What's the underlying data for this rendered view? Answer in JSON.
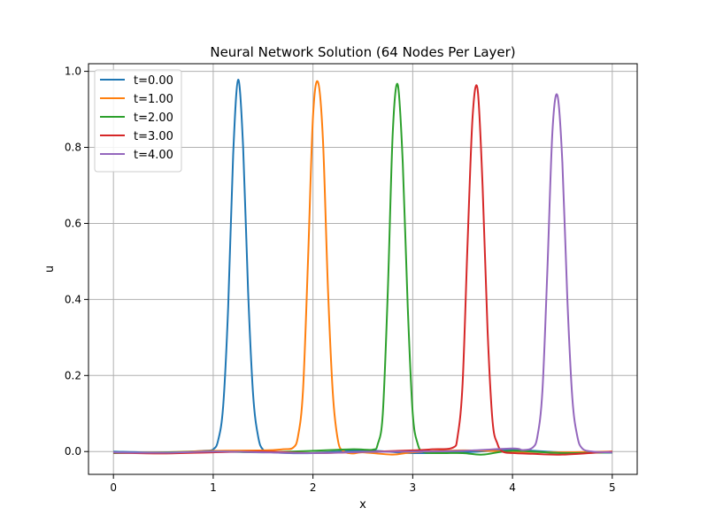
{
  "chart_data": {
    "type": "line",
    "title": "Neural Network Solution (64 Nodes Per Layer)",
    "xlabel": "x",
    "ylabel": "u",
    "xlim": [
      -0.25,
      5.25
    ],
    "ylim": [
      -0.06,
      1.02
    ],
    "xticks": [
      0,
      1,
      2,
      3,
      4,
      5
    ],
    "xtick_labels": [
      "0",
      "1",
      "2",
      "3",
      "4",
      "5"
    ],
    "yticks": [
      0.0,
      0.2,
      0.4,
      0.6,
      0.8,
      1.0
    ],
    "ytick_labels": [
      "0.0",
      "0.2",
      "0.4",
      "0.6",
      "0.8",
      "1.0"
    ],
    "grid": true,
    "legend_position": "top-left",
    "series": [
      {
        "name": "t=0.00",
        "color": "#1f77b4",
        "x": [
          0,
          0.5,
          0.9,
          1.0,
          1.05,
          1.1,
          1.15,
          1.2,
          1.25,
          1.3,
          1.35,
          1.4,
          1.45,
          1.5,
          1.6,
          2.0,
          2.5,
          3.0,
          3.5,
          4.0,
          4.5,
          5.0
        ],
        "y": [
          0.0,
          -0.003,
          0.002,
          0.006,
          0.03,
          0.12,
          0.38,
          0.78,
          0.978,
          0.8,
          0.42,
          0.15,
          0.04,
          0.005,
          -0.002,
          -0.004,
          0.003,
          -0.004,
          -0.002,
          0.004,
          -0.002,
          -0.003
        ]
      },
      {
        "name": "t=1.00",
        "color": "#ff7f0e",
        "x": [
          0,
          0.5,
          1.0,
          1.5,
          1.7,
          1.8,
          1.85,
          1.9,
          1.95,
          2.0,
          2.05,
          2.1,
          2.15,
          2.2,
          2.25,
          2.3,
          2.4,
          2.5,
          2.8,
          3.0,
          3.5,
          4.0,
          4.5,
          5.0
        ],
        "y": [
          -0.003,
          -0.002,
          0.002,
          0.003,
          0.006,
          0.01,
          0.04,
          0.16,
          0.5,
          0.88,
          0.972,
          0.82,
          0.43,
          0.15,
          0.03,
          0.002,
          -0.005,
          -0.002,
          -0.008,
          -0.002,
          0.003,
          0.0,
          -0.002,
          0.0
        ]
      },
      {
        "name": "t=2.00",
        "color": "#2ca02c",
        "x": [
          0,
          0.5,
          1.0,
          1.5,
          2.0,
          2.4,
          2.6,
          2.65,
          2.7,
          2.75,
          2.8,
          2.85,
          2.9,
          2.95,
          3.0,
          3.05,
          3.1,
          3.2,
          3.5,
          3.7,
          4.0,
          4.5,
          5.0
        ],
        "y": [
          -0.004,
          -0.002,
          0.0,
          -0.002,
          0.002,
          0.006,
          0.005,
          0.02,
          0.1,
          0.42,
          0.84,
          0.965,
          0.76,
          0.38,
          0.1,
          0.02,
          0.0,
          -0.004,
          -0.004,
          -0.008,
          0.002,
          -0.004,
          -0.002
        ]
      },
      {
        "name": "t=3.00",
        "color": "#d62728",
        "x": [
          0,
          0.5,
          1.0,
          1.5,
          2.0,
          2.5,
          3.0,
          3.2,
          3.4,
          3.45,
          3.5,
          3.55,
          3.6,
          3.65,
          3.7,
          3.75,
          3.8,
          3.85,
          3.9,
          4.0,
          4.2,
          4.5,
          5.0
        ],
        "y": [
          -0.003,
          -0.005,
          -0.002,
          0.0,
          -0.004,
          -0.001,
          0.003,
          0.006,
          0.01,
          0.04,
          0.18,
          0.55,
          0.88,
          0.953,
          0.7,
          0.32,
          0.08,
          0.02,
          0.0,
          -0.004,
          -0.006,
          -0.008,
          0.0
        ]
      },
      {
        "name": "t=4.00",
        "color": "#9467bd",
        "x": [
          0,
          0.5,
          1.0,
          1.5,
          2.0,
          2.5,
          3.0,
          3.5,
          4.0,
          4.1,
          4.2,
          4.25,
          4.3,
          4.35,
          4.4,
          4.45,
          4.5,
          4.55,
          4.6,
          4.65,
          4.7,
          4.8,
          5.0
        ],
        "y": [
          -0.002,
          -0.003,
          0.0,
          -0.002,
          -0.004,
          -0.001,
          0.0,
          0.002,
          0.008,
          0.004,
          0.01,
          0.04,
          0.16,
          0.48,
          0.84,
          0.937,
          0.76,
          0.4,
          0.14,
          0.04,
          0.008,
          0.0,
          -0.002
        ]
      }
    ]
  }
}
